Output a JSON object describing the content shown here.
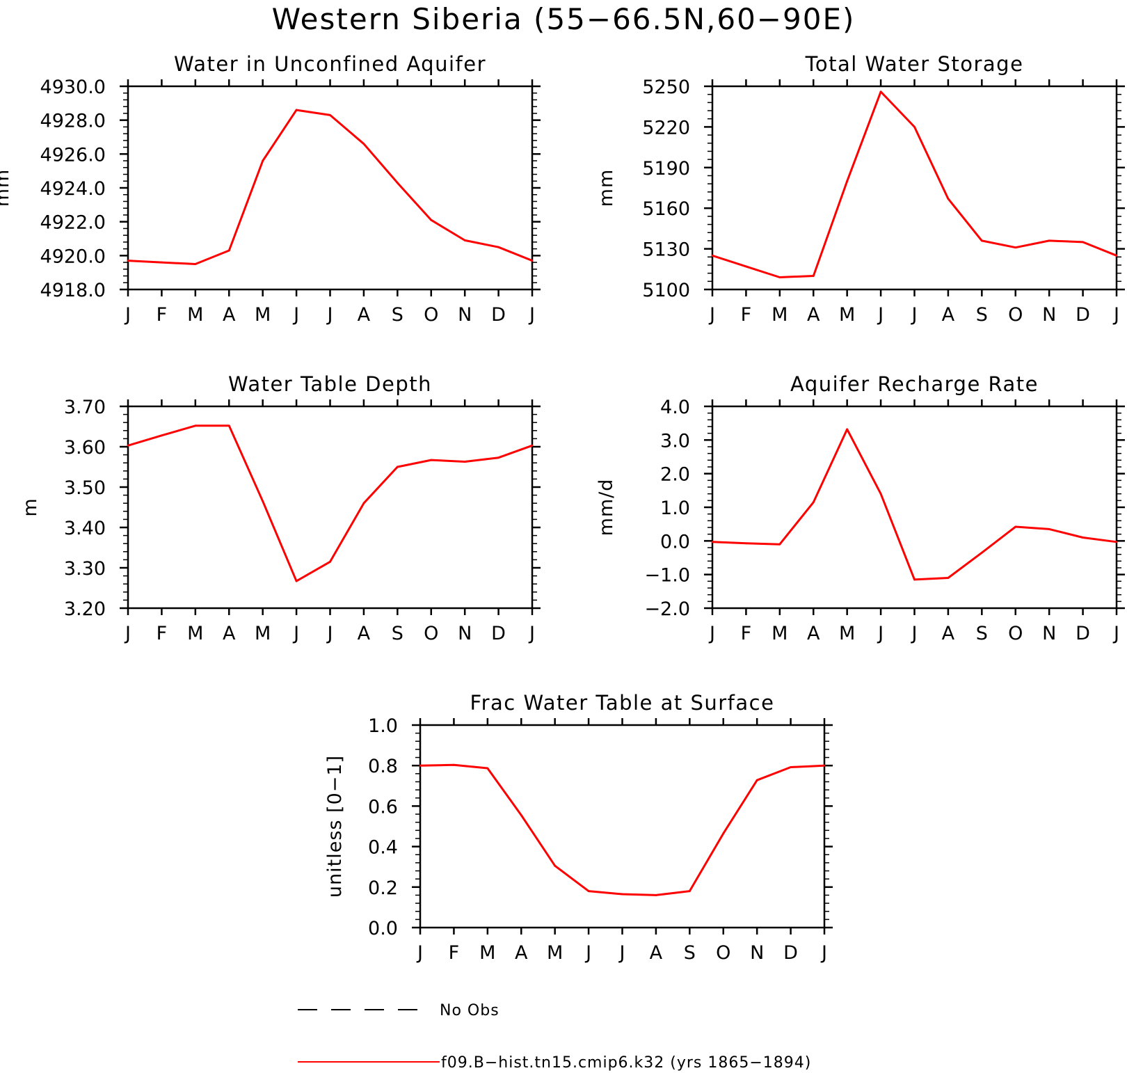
{
  "figure": {
    "title": "Western Siberia (55−66.5N,60−90E)"
  },
  "legend": [
    {
      "label": "No Obs",
      "style": "dashed",
      "color": "#000000"
    },
    {
      "label": "f09.B−hist.tn15.cmip6.k32 (yrs 1865−1894)",
      "style": "solid",
      "color": "#ff0000"
    }
  ],
  "colors": {
    "series": "#ff0000",
    "axes": "#000000"
  },
  "chart_data": [
    {
      "type": "line",
      "title": "Water in Unconfined Aquifer",
      "xlabel": "",
      "ylabel": "mm",
      "categories": [
        "J",
        "F",
        "M",
        "A",
        "M",
        "J",
        "J",
        "A",
        "S",
        "O",
        "N",
        "D",
        "J"
      ],
      "ylim": [
        4918.0,
        4930.0
      ],
      "yticks": [
        4918.0,
        4920.0,
        4922.0,
        4924.0,
        4926.0,
        4928.0,
        4930.0
      ],
      "ytick_labels": [
        "4918.0",
        "4920.0",
        "4922.0",
        "4924.0",
        "4926.0",
        "4928.0",
        "4930.0"
      ],
      "grid": false,
      "series": [
        {
          "color": "#ff0000",
          "values": [
            4919.7,
            4919.6,
            4919.5,
            4920.3,
            4925.6,
            4928.6,
            4928.3,
            4926.6,
            4924.3,
            4922.1,
            4920.9,
            4920.5,
            4919.7
          ]
        }
      ]
    },
    {
      "type": "line",
      "title": "Total Water Storage",
      "xlabel": "",
      "ylabel": "mm",
      "categories": [
        "J",
        "F",
        "M",
        "A",
        "M",
        "J",
        "J",
        "A",
        "S",
        "O",
        "N",
        "D",
        "J"
      ],
      "ylim": [
        5100,
        5250
      ],
      "yticks": [
        5100,
        5130,
        5160,
        5190,
        5220,
        5250
      ],
      "ytick_labels": [
        "5100",
        "5130",
        "5160",
        "5190",
        "5220",
        "5250"
      ],
      "grid": false,
      "series": [
        {
          "color": "#ff0000",
          "values": [
            5125,
            5117,
            5109,
            5110,
            5180,
            5246,
            5220,
            5167,
            5136,
            5131,
            5136,
            5135,
            5125
          ]
        }
      ]
    },
    {
      "type": "line",
      "title": "Water Table Depth",
      "xlabel": "",
      "ylabel": "m",
      "categories": [
        "J",
        "F",
        "M",
        "A",
        "M",
        "J",
        "J",
        "A",
        "S",
        "O",
        "N",
        "D",
        "J"
      ],
      "ylim": [
        3.2,
        3.7
      ],
      "yticks": [
        3.2,
        3.3,
        3.4,
        3.5,
        3.6,
        3.7
      ],
      "ytick_labels": [
        "3.20",
        "3.30",
        "3.40",
        "3.50",
        "3.60",
        "3.70"
      ],
      "grid": false,
      "series": [
        {
          "color": "#ff0000",
          "values": [
            3.603,
            3.628,
            3.652,
            3.652,
            3.465,
            3.267,
            3.315,
            3.46,
            3.55,
            3.567,
            3.563,
            3.573,
            3.603
          ]
        }
      ]
    },
    {
      "type": "line",
      "title": "Aquifer Recharge Rate",
      "xlabel": "",
      "ylabel": "mm/d",
      "categories": [
        "J",
        "F",
        "M",
        "A",
        "M",
        "J",
        "J",
        "A",
        "S",
        "O",
        "N",
        "D",
        "J"
      ],
      "ylim": [
        -2.0,
        4.0
      ],
      "yticks": [
        -2.0,
        -1.0,
        0.0,
        1.0,
        2.0,
        3.0,
        4.0
      ],
      "ytick_labels": [
        "−2.0",
        "−1.0",
        "0.0",
        "1.0",
        "2.0",
        "3.0",
        "4.0"
      ],
      "grid": false,
      "series": [
        {
          "color": "#ff0000",
          "values": [
            -0.03,
            -0.07,
            -0.1,
            1.15,
            3.32,
            1.4,
            -1.15,
            -1.1,
            -0.35,
            0.42,
            0.35,
            0.1,
            -0.03
          ]
        }
      ]
    },
    {
      "type": "line",
      "title": "Frac Water Table at Surface",
      "xlabel": "",
      "ylabel": "unitless [0−1]",
      "categories": [
        "J",
        "F",
        "M",
        "A",
        "M",
        "J",
        "J",
        "A",
        "S",
        "O",
        "N",
        "D",
        "J"
      ],
      "ylim": [
        0.0,
        1.0
      ],
      "yticks": [
        0.0,
        0.2,
        0.4,
        0.6,
        0.8,
        1.0
      ],
      "ytick_labels": [
        "0.0",
        "0.2",
        "0.4",
        "0.6",
        "0.8",
        "1.0"
      ],
      "grid": false,
      "series": [
        {
          "color": "#ff0000",
          "values": [
            0.8,
            0.803,
            0.787,
            0.555,
            0.305,
            0.18,
            0.165,
            0.16,
            0.18,
            0.465,
            0.728,
            0.792,
            0.8
          ]
        }
      ]
    }
  ]
}
